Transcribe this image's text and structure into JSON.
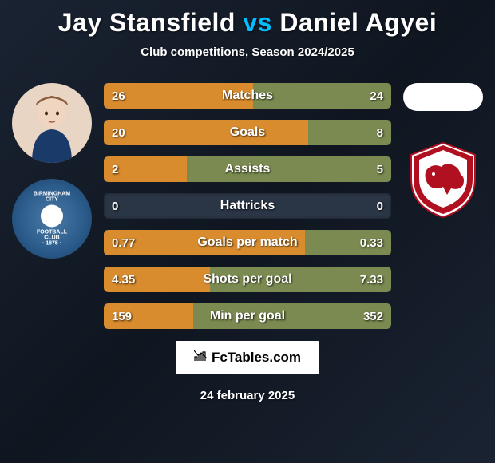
{
  "title": {
    "player1": "Jay Stansfield",
    "vs": "vs",
    "player2": "Daniel Agyei"
  },
  "subtitle": "Club competitions, Season 2024/2025",
  "bars": [
    {
      "label": "Matches",
      "left": "26",
      "right": "24",
      "left_pct": 52,
      "right_pct": 48
    },
    {
      "label": "Goals",
      "left": "20",
      "right": "8",
      "left_pct": 71,
      "right_pct": 29
    },
    {
      "label": "Assists",
      "left": "2",
      "right": "5",
      "left_pct": 29,
      "right_pct": 71
    },
    {
      "label": "Hattricks",
      "left": "0",
      "right": "0",
      "left_pct": 0,
      "right_pct": 0
    },
    {
      "label": "Goals per match",
      "left": "0.77",
      "right": "0.33",
      "left_pct": 70,
      "right_pct": 30
    },
    {
      "label": "Shots per goal",
      "left": "4.35",
      "right": "7.33",
      "left_pct": 37,
      "right_pct": 63
    },
    {
      "label": "Min per goal",
      "left": "159",
      "right": "352",
      "left_pct": 31,
      "right_pct": 69
    }
  ],
  "colors": {
    "left_fill": "#d98c2e",
    "right_fill": "#7a8a50",
    "bar_bg": "#2a3545"
  },
  "footer": {
    "site": "FcTables.com",
    "date": "24 february 2025"
  },
  "clubs": {
    "left_name": "BIRMINGHAM CITY",
    "left_sub": "FOOTBALL CLUB",
    "left_year": "· 1875 ·"
  }
}
